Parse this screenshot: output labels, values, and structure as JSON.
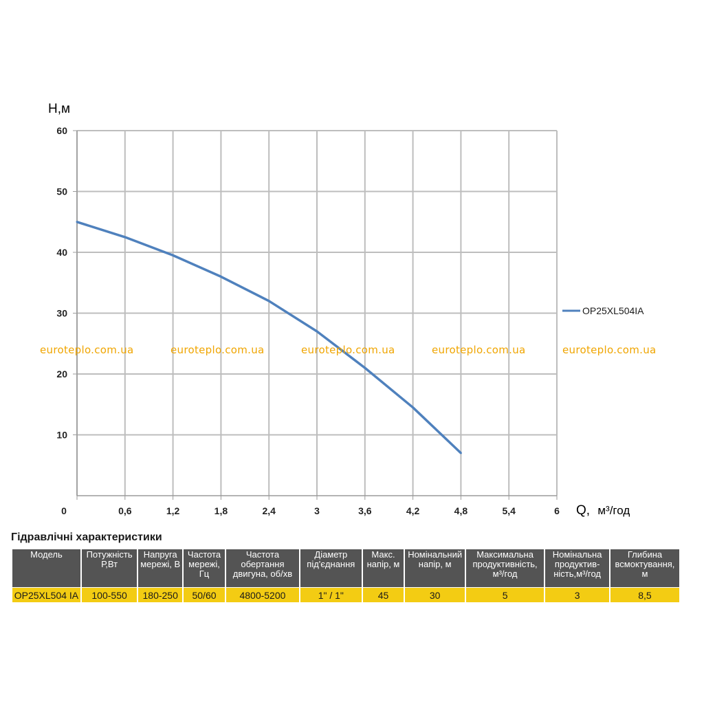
{
  "chart_data": {
    "type": "line",
    "ylabel": "H,м",
    "xlabel_main": "Q,",
    "xlabel_unit": "м³/год",
    "x_ticks": [
      "0",
      "0,6",
      "1,2",
      "1,8",
      "2,4",
      "3",
      "3,6",
      "4,2",
      "4,8",
      "5,4",
      "6"
    ],
    "y_ticks": [
      "10",
      "20",
      "30",
      "40",
      "50",
      "60"
    ],
    "xlim": [
      0,
      6
    ],
    "ylim": [
      0,
      60
    ],
    "grid": true,
    "legend_position": "right",
    "series": [
      {
        "name": "OP25XL504IA",
        "color": "#4f81bd",
        "x": [
          0,
          0.6,
          1.2,
          1.8,
          2.4,
          3.0,
          3.6,
          4.2,
          4.8
        ],
        "y": [
          45,
          42.5,
          39.5,
          36,
          32,
          27,
          21,
          14.5,
          7
        ]
      }
    ]
  },
  "watermark": "euroteplo.com.ua",
  "table": {
    "title": "Гідравлічні характеристики",
    "headers": [
      "Модель",
      "Потужність Р,Вт",
      "Напруга мережі, В",
      "Частота мережі, Гц",
      "Частота обертання двигуна, об/хв",
      "Діаметр під'єднання",
      "Макс. напір, м",
      "Номінальний напір, м",
      "Максимальна продуктивність, м³/год",
      "Номінальна продуктив-ність,м³/год",
      "Глибина всмоктування, м"
    ],
    "row": [
      "OP25XL504 IA",
      "100-550",
      "180-250",
      "50/60",
      "4800-5200",
      "1\" / 1\"",
      "45",
      "30",
      "5",
      "3",
      "8,5"
    ]
  }
}
